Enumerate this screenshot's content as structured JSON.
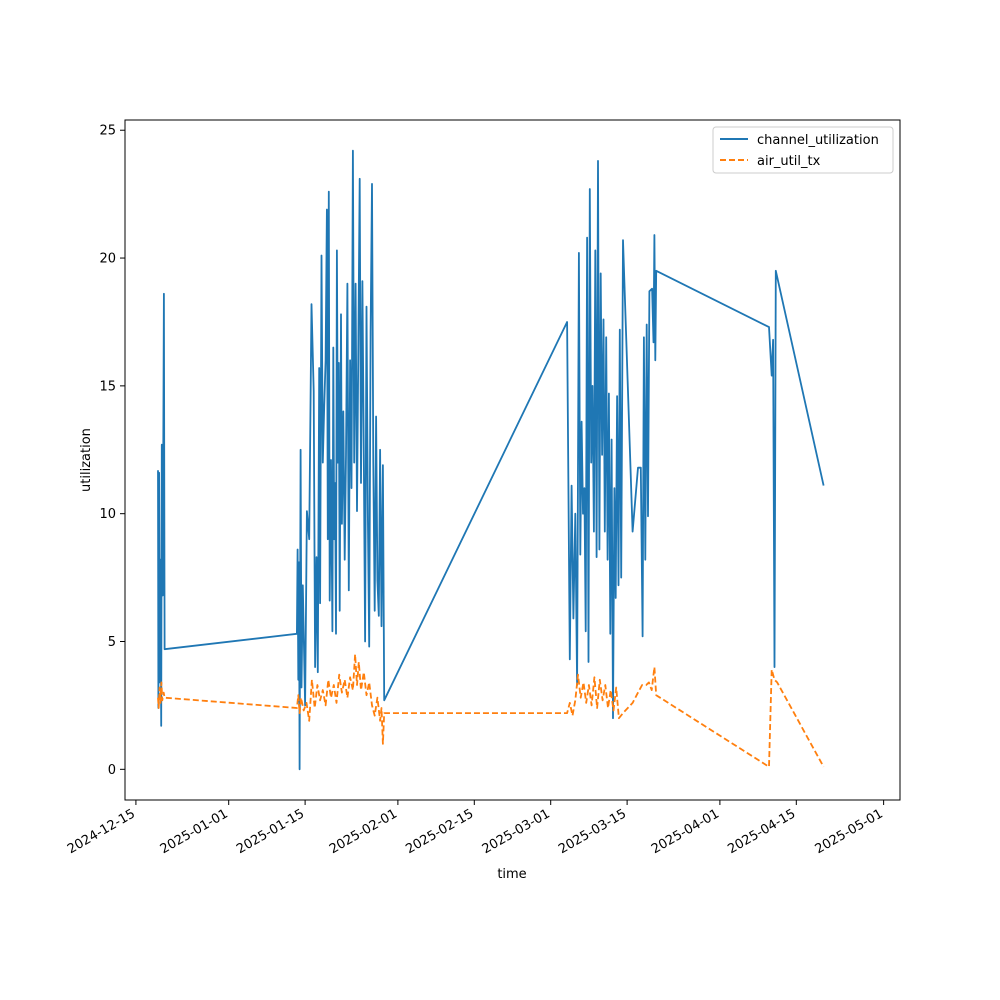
{
  "chart_data": {
    "type": "line",
    "title": "",
    "xlabel": "time",
    "ylabel": "utilization",
    "x_type": "date",
    "xlim": [
      "2024-12-13T00:00",
      "2025-05-04T00:00"
    ],
    "ylim": [
      -1.2,
      25.4
    ],
    "x_ticks": [
      "2024-12-15",
      "2025-01-01",
      "2025-01-15",
      "2025-02-01",
      "2025-02-15",
      "2025-03-01",
      "2025-03-15",
      "2025-04-01",
      "2025-04-15",
      "2025-05-01"
    ],
    "y_ticks": [
      0,
      5,
      10,
      15,
      20,
      25
    ],
    "y_tick_labels": [
      "0",
      "5",
      "10",
      "15",
      "20",
      "25"
    ],
    "grid": false,
    "legend_position": "top-right",
    "series": [
      {
        "name": "channel_utilization",
        "color": "#1f77b4",
        "line_style": "solid",
        "points": [
          [
            "2024-12-19T01:00",
            11.7
          ],
          [
            "2024-12-19T03:00",
            2.4
          ],
          [
            "2024-12-19T06:00",
            11.6
          ],
          [
            "2024-12-19T09:00",
            3.4
          ],
          [
            "2024-12-19T12:00",
            8.2
          ],
          [
            "2024-12-19T15:00",
            1.7
          ],
          [
            "2024-12-19T18:00",
            12.7
          ],
          [
            "2024-12-19T22:00",
            6.8
          ],
          [
            "2024-12-20T03:00",
            18.6
          ],
          [
            "2024-12-20T06:00",
            4.7
          ],
          [
            "2025-01-13T12:00",
            5.3
          ],
          [
            "2025-01-13T15:00",
            8.6
          ],
          [
            "2025-01-13T18:00",
            3.5
          ],
          [
            "2025-01-13T21:00",
            8.1
          ],
          [
            "2025-01-14T00:00",
            0.0
          ],
          [
            "2025-01-14T04:00",
            12.5
          ],
          [
            "2025-01-14T08:00",
            3.2
          ],
          [
            "2025-01-14T14:00",
            7.2
          ],
          [
            "2025-01-15T00:00",
            2.5
          ],
          [
            "2025-01-15T08:00",
            10.1
          ],
          [
            "2025-01-15T18:00",
            9.0
          ],
          [
            "2025-01-16T04:00",
            18.2
          ],
          [
            "2025-01-16T14:00",
            14.8
          ],
          [
            "2025-01-16T20:00",
            4.0
          ],
          [
            "2025-01-17T02:00",
            8.3
          ],
          [
            "2025-01-17T08:00",
            3.8
          ],
          [
            "2025-01-17T14:00",
            15.7
          ],
          [
            "2025-01-17T18:00",
            6.5
          ],
          [
            "2025-01-18T00:00",
            20.1
          ],
          [
            "2025-01-18T06:00",
            12.0
          ],
          [
            "2025-01-18T12:00",
            14.2
          ],
          [
            "2025-01-18T18:00",
            16.0
          ],
          [
            "2025-01-19T00:00",
            21.9
          ],
          [
            "2025-01-19T04:00",
            9.0
          ],
          [
            "2025-01-19T08:00",
            22.6
          ],
          [
            "2025-01-19T12:00",
            6.6
          ],
          [
            "2025-01-19T18:00",
            12.1
          ],
          [
            "2025-01-20T00:00",
            5.4
          ],
          [
            "2025-01-20T04:00",
            16.5
          ],
          [
            "2025-01-20T08:00",
            9.0
          ],
          [
            "2025-01-20T12:00",
            11.2
          ],
          [
            "2025-01-20T16:00",
            5.3
          ],
          [
            "2025-01-20T20:00",
            20.3
          ],
          [
            "2025-01-21T00:00",
            12.0
          ],
          [
            "2025-01-21T04:00",
            15.9
          ],
          [
            "2025-01-21T08:00",
            6.2
          ],
          [
            "2025-01-21T14:00",
            17.8
          ],
          [
            "2025-01-21T18:00",
            9.6
          ],
          [
            "2025-01-22T00:00",
            14.0
          ],
          [
            "2025-01-22T06:00",
            8.2
          ],
          [
            "2025-01-22T12:00",
            12.3
          ],
          [
            "2025-01-22T18:00",
            19.0
          ],
          [
            "2025-01-23T00:00",
            7.0
          ],
          [
            "2025-01-23T06:00",
            16.0
          ],
          [
            "2025-01-23T12:00",
            11.0
          ],
          [
            "2025-01-23T18:00",
            24.2
          ],
          [
            "2025-01-24T00:00",
            12.0
          ],
          [
            "2025-01-24T06:00",
            19.0
          ],
          [
            "2025-01-24T12:00",
            10.1
          ],
          [
            "2025-01-24T18:00",
            16.4
          ],
          [
            "2025-01-25T00:00",
            23.1
          ],
          [
            "2025-01-25T06:00",
            11.2
          ],
          [
            "2025-01-25T12:00",
            19.1
          ],
          [
            "2025-01-25T18:00",
            12.3
          ],
          [
            "2025-01-26T00:00",
            5.0
          ],
          [
            "2025-01-26T06:00",
            18.1
          ],
          [
            "2025-01-26T12:00",
            9.8
          ],
          [
            "2025-01-26T18:00",
            4.8
          ],
          [
            "2025-01-27T00:00",
            17.1
          ],
          [
            "2025-01-27T06:00",
            22.9
          ],
          [
            "2025-01-27T12:00",
            12.0
          ],
          [
            "2025-01-27T18:00",
            6.2
          ],
          [
            "2025-01-28T00:00",
            13.8
          ],
          [
            "2025-01-28T06:00",
            7.4
          ],
          [
            "2025-01-28T12:00",
            6.0
          ],
          [
            "2025-01-28T18:00",
            12.5
          ],
          [
            "2025-01-29T00:00",
            5.6
          ],
          [
            "2025-01-29T06:00",
            11.9
          ],
          [
            "2025-01-29T12:00",
            2.7
          ],
          [
            "2025-03-04T00:00",
            17.5
          ],
          [
            "2025-03-04T12:00",
            4.3
          ],
          [
            "2025-03-04T20:00",
            11.1
          ],
          [
            "2025-03-05T04:00",
            5.9
          ],
          [
            "2025-03-05T12:00",
            10.0
          ],
          [
            "2025-03-05T20:00",
            3.3
          ],
          [
            "2025-03-06T04:00",
            20.2
          ],
          [
            "2025-03-06T10:00",
            8.4
          ],
          [
            "2025-03-06T16:00",
            13.6
          ],
          [
            "2025-03-06T22:00",
            10.0
          ],
          [
            "2025-03-07T04:00",
            11.0
          ],
          [
            "2025-03-07T10:00",
            5.4
          ],
          [
            "2025-03-07T16:00",
            20.8
          ],
          [
            "2025-03-07T22:00",
            4.2
          ],
          [
            "2025-03-08T04:00",
            22.7
          ],
          [
            "2025-03-08T10:00",
            12.0
          ],
          [
            "2025-03-08T16:00",
            15.0
          ],
          [
            "2025-03-08T22:00",
            9.3
          ],
          [
            "2025-03-09T04:00",
            20.3
          ],
          [
            "2025-03-09T10:00",
            8.3
          ],
          [
            "2025-03-09T16:00",
            23.8
          ],
          [
            "2025-03-09T22:00",
            8.6
          ],
          [
            "2025-03-10T04:00",
            19.4
          ],
          [
            "2025-03-10T10:00",
            12.3
          ],
          [
            "2025-03-10T16:00",
            17.6
          ],
          [
            "2025-03-10T22:00",
            9.3
          ],
          [
            "2025-03-11T04:00",
            16.9
          ],
          [
            "2025-03-11T10:00",
            8.2
          ],
          [
            "2025-03-11T16:00",
            14.7
          ],
          [
            "2025-03-11T22:00",
            5.3
          ],
          [
            "2025-03-12T04:00",
            12.9
          ],
          [
            "2025-03-12T10:00",
            2.0
          ],
          [
            "2025-03-12T16:00",
            11.0
          ],
          [
            "2025-03-12T22:00",
            6.7
          ],
          [
            "2025-03-13T04:00",
            14.6
          ],
          [
            "2025-03-13T10:00",
            7.2
          ],
          [
            "2025-03-13T16:00",
            17.2
          ],
          [
            "2025-03-13T22:00",
            7.5
          ],
          [
            "2025-03-14T06:00",
            20.7
          ],
          [
            "2025-03-16T00:00",
            9.3
          ],
          [
            "2025-03-17T00:00",
            11.8
          ],
          [
            "2025-03-17T12:00",
            11.8
          ],
          [
            "2025-03-17T20:00",
            5.2
          ],
          [
            "2025-03-18T02:00",
            16.9
          ],
          [
            "2025-03-18T08:00",
            8.2
          ],
          [
            "2025-03-18T14:00",
            17.4
          ],
          [
            "2025-03-18T20:00",
            9.9
          ],
          [
            "2025-03-19T02:00",
            18.7
          ],
          [
            "2025-03-19T14:00",
            18.8
          ],
          [
            "2025-03-19T20:00",
            16.7
          ],
          [
            "2025-03-20T00:00",
            20.9
          ],
          [
            "2025-03-20T04:00",
            16.0
          ],
          [
            "2025-03-20T08:00",
            19.5
          ],
          [
            "2025-04-10T00:00",
            17.3
          ],
          [
            "2025-04-10T12:00",
            15.4
          ],
          [
            "2025-04-10T18:00",
            16.8
          ],
          [
            "2025-04-11T00:00",
            4.0
          ],
          [
            "2025-04-11T06:00",
            19.5
          ],
          [
            "2025-04-20T00:00",
            11.1
          ]
        ]
      },
      {
        "name": "air_util_tx",
        "color": "#ff7f0e",
        "line_style": "dashed",
        "points": [
          [
            "2024-12-19T01:00",
            2.8
          ],
          [
            "2024-12-19T04:00",
            2.4
          ],
          [
            "2024-12-19T08:00",
            3.2
          ],
          [
            "2024-12-19T12:00",
            2.6
          ],
          [
            "2024-12-19T16:00",
            3.4
          ],
          [
            "2024-12-19T20:00",
            2.7
          ],
          [
            "2024-12-20T02:00",
            3.0
          ],
          [
            "2024-12-20T06:00",
            2.8
          ],
          [
            "2025-01-13T12:00",
            2.4
          ],
          [
            "2025-01-13T18:00",
            2.9
          ],
          [
            "2025-01-14T00:00",
            2.2
          ],
          [
            "2025-01-14T06:00",
            2.8
          ],
          [
            "2025-01-14T18:00",
            2.3
          ],
          [
            "2025-01-15T06:00",
            2.6
          ],
          [
            "2025-01-15T18:00",
            1.9
          ],
          [
            "2025-01-16T06:00",
            3.5
          ],
          [
            "2025-01-16T18:00",
            2.4
          ],
          [
            "2025-01-17T06:00",
            3.3
          ],
          [
            "2025-01-17T18:00",
            2.7
          ],
          [
            "2025-01-18T06:00",
            3.1
          ],
          [
            "2025-01-18T18:00",
            2.5
          ],
          [
            "2025-01-19T06:00",
            3.5
          ],
          [
            "2025-01-19T18:00",
            2.8
          ],
          [
            "2025-01-20T06:00",
            3.3
          ],
          [
            "2025-01-20T18:00",
            2.6
          ],
          [
            "2025-01-21T06:00",
            3.7
          ],
          [
            "2025-01-21T18:00",
            3.0
          ],
          [
            "2025-01-22T06:00",
            3.5
          ],
          [
            "2025-01-22T18:00",
            2.8
          ],
          [
            "2025-01-23T06:00",
            3.6
          ],
          [
            "2025-01-23T18:00",
            3.1
          ],
          [
            "2025-01-24T04:00",
            4.5
          ],
          [
            "2025-01-24T12:00",
            3.3
          ],
          [
            "2025-01-24T20:00",
            4.2
          ],
          [
            "2025-01-25T06:00",
            3.1
          ],
          [
            "2025-01-25T18:00",
            3.8
          ],
          [
            "2025-01-26T06:00",
            2.9
          ],
          [
            "2025-01-26T18:00",
            3.4
          ],
          [
            "2025-01-27T06:00",
            2.5
          ],
          [
            "2025-01-27T18:00",
            2.1
          ],
          [
            "2025-01-28T06:00",
            2.8
          ],
          [
            "2025-01-28T18:00",
            1.9
          ],
          [
            "2025-01-29T00:00",
            2.4
          ],
          [
            "2025-01-29T06:00",
            1.0
          ],
          [
            "2025-01-29T12:00",
            2.2
          ],
          [
            "2025-03-04T00:00",
            2.2
          ],
          [
            "2025-03-04T12:00",
            2.6
          ],
          [
            "2025-03-05T00:00",
            2.1
          ],
          [
            "2025-03-05T12:00",
            2.7
          ],
          [
            "2025-03-06T00:00",
            3.7
          ],
          [
            "2025-03-06T12:00",
            2.8
          ],
          [
            "2025-03-07T00:00",
            3.4
          ],
          [
            "2025-03-07T12:00",
            2.6
          ],
          [
            "2025-03-08T00:00",
            3.3
          ],
          [
            "2025-03-08T12:00",
            2.5
          ],
          [
            "2025-03-09T00:00",
            3.6
          ],
          [
            "2025-03-09T12:00",
            2.4
          ],
          [
            "2025-03-10T00:00",
            3.5
          ],
          [
            "2025-03-10T12:00",
            2.7
          ],
          [
            "2025-03-11T00:00",
            3.3
          ],
          [
            "2025-03-11T12:00",
            2.4
          ],
          [
            "2025-03-12T00:00",
            3.1
          ],
          [
            "2025-03-12T12:00",
            2.3
          ],
          [
            "2025-03-13T00:00",
            3.2
          ],
          [
            "2025-03-13T12:00",
            2.0
          ],
          [
            "2025-03-14T06:00",
            2.2
          ],
          [
            "2025-03-16T00:00",
            2.6
          ],
          [
            "2025-03-17T00:00",
            3.0
          ],
          [
            "2025-03-17T18:00",
            3.3
          ],
          [
            "2025-03-18T12:00",
            3.3
          ],
          [
            "2025-03-19T00:00",
            3.4
          ],
          [
            "2025-03-19T12:00",
            3.1
          ],
          [
            "2025-03-20T00:00",
            4.0
          ],
          [
            "2025-03-20T08:00",
            2.9
          ],
          [
            "2025-04-10T00:00",
            0.1
          ],
          [
            "2025-04-10T12:00",
            3.9
          ],
          [
            "2025-04-11T00:00",
            3.5
          ],
          [
            "2025-04-11T12:00",
            3.4
          ],
          [
            "2025-04-20T00:00",
            0.1
          ]
        ]
      }
    ]
  }
}
